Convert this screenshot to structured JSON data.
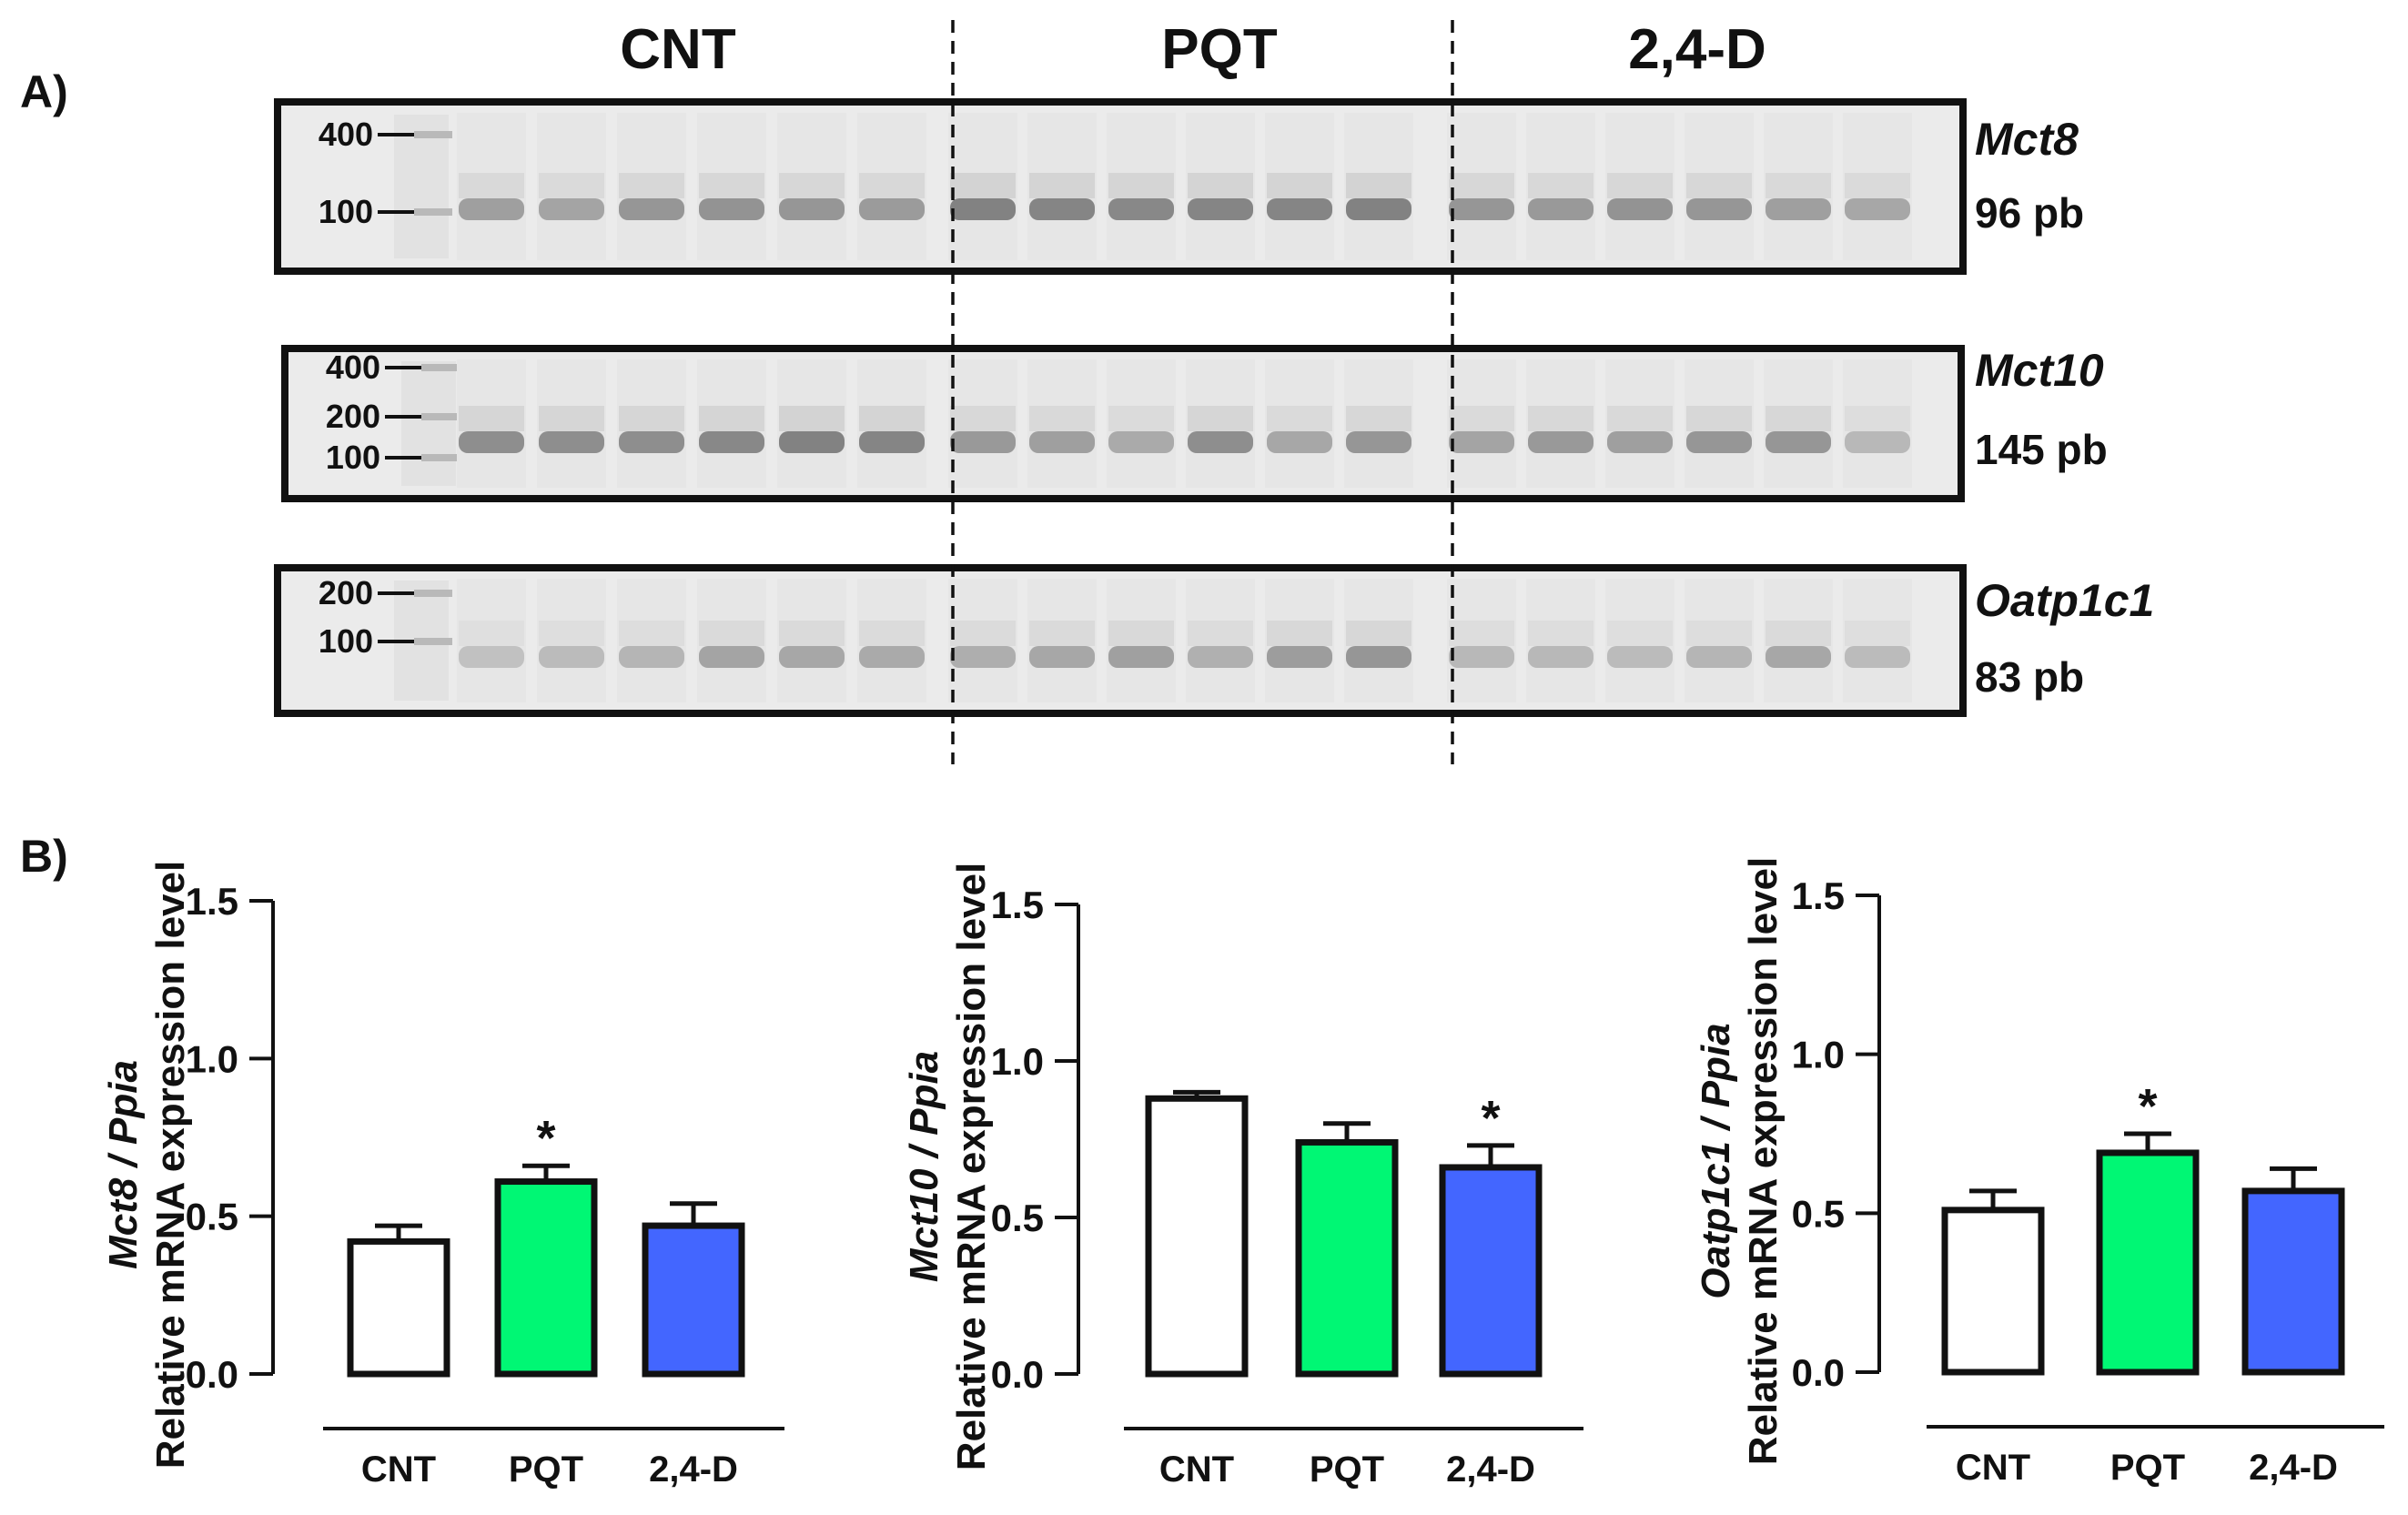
{
  "panel_a": {
    "label": "A)",
    "groups": [
      "CNT",
      "PQT",
      "2,4-D"
    ],
    "gels": [
      {
        "gene": "Mct8",
        "size": "96 pb",
        "ladder": [
          "400",
          "100"
        ],
        "intensities": [
          0.45,
          0.42,
          0.5,
          0.52,
          0.5,
          0.47,
          0.62,
          0.6,
          0.58,
          0.6,
          0.6,
          0.62,
          0.5,
          0.48,
          0.52,
          0.5,
          0.45,
          0.4
        ]
      },
      {
        "gene": "Mct10",
        "size": "145 pb",
        "ladder": [
          "400",
          "200",
          "100"
        ],
        "intensities": [
          0.55,
          0.55,
          0.55,
          0.58,
          0.62,
          0.6,
          0.48,
          0.45,
          0.38,
          0.55,
          0.4,
          0.5,
          0.42,
          0.48,
          0.45,
          0.5,
          0.5,
          0.3
        ]
      },
      {
        "gene": "Oatp1c1",
        "size": "83 pb",
        "ladder": [
          "200",
          "100"
        ],
        "intensities": [
          0.25,
          0.28,
          0.32,
          0.42,
          0.4,
          0.38,
          0.36,
          0.4,
          0.44,
          0.35,
          0.46,
          0.5,
          0.3,
          0.3,
          0.28,
          0.32,
          0.4,
          0.28
        ]
      }
    ]
  },
  "panel_b": {
    "label": "B)",
    "significance_marker": "*"
  },
  "colors": {
    "CNT": "#ffffff",
    "PQT": "#00f774",
    "2,4-D": "#4366ff",
    "ink": "#111111"
  },
  "chart_data": [
    {
      "type": "bar",
      "title": "",
      "gene": "Mct8",
      "ylabel_gene": "Mct8 / Ppia",
      "ylabel": "Relative mRNA expression level",
      "xlabel": "",
      "categories": [
        "CNT",
        "PQT",
        "2,4-D"
      ],
      "values": [
        0.42,
        0.61,
        0.47
      ],
      "errors": [
        0.05,
        0.05,
        0.07
      ],
      "significant": [
        false,
        true,
        false
      ],
      "ylim": [
        0,
        1.5
      ],
      "yticks": [
        "0.0",
        "0.5",
        "1.0",
        "1.5"
      ],
      "grid": false
    },
    {
      "type": "bar",
      "title": "",
      "gene": "Mct10",
      "ylabel_gene": "Mct10 / Ppia",
      "ylabel": "Relative mRNA expression level",
      "xlabel": "",
      "categories": [
        "CNT",
        "PQT",
        "2,4-D"
      ],
      "values": [
        0.88,
        0.74,
        0.66
      ],
      "errors": [
        0.02,
        0.06,
        0.07
      ],
      "significant": [
        false,
        false,
        true
      ],
      "ylim": [
        0,
        1.5
      ],
      "yticks": [
        "0.0",
        "0.5",
        "1.0",
        "1.5"
      ],
      "grid": false
    },
    {
      "type": "bar",
      "title": "",
      "gene": "Oatp1c1",
      "ylabel_gene": "Oatp1c1 / Ppia",
      "ylabel": "Relative mRNA expression level",
      "xlabel": "",
      "categories": [
        "CNT",
        "PQT",
        "2,4-D"
      ],
      "values": [
        0.51,
        0.69,
        0.57
      ],
      "errors": [
        0.06,
        0.06,
        0.07
      ],
      "significant": [
        false,
        true,
        false
      ],
      "ylim": [
        0,
        1.5
      ],
      "yticks": [
        "0.0",
        "0.5",
        "1.0",
        "1.5"
      ],
      "grid": false
    }
  ]
}
